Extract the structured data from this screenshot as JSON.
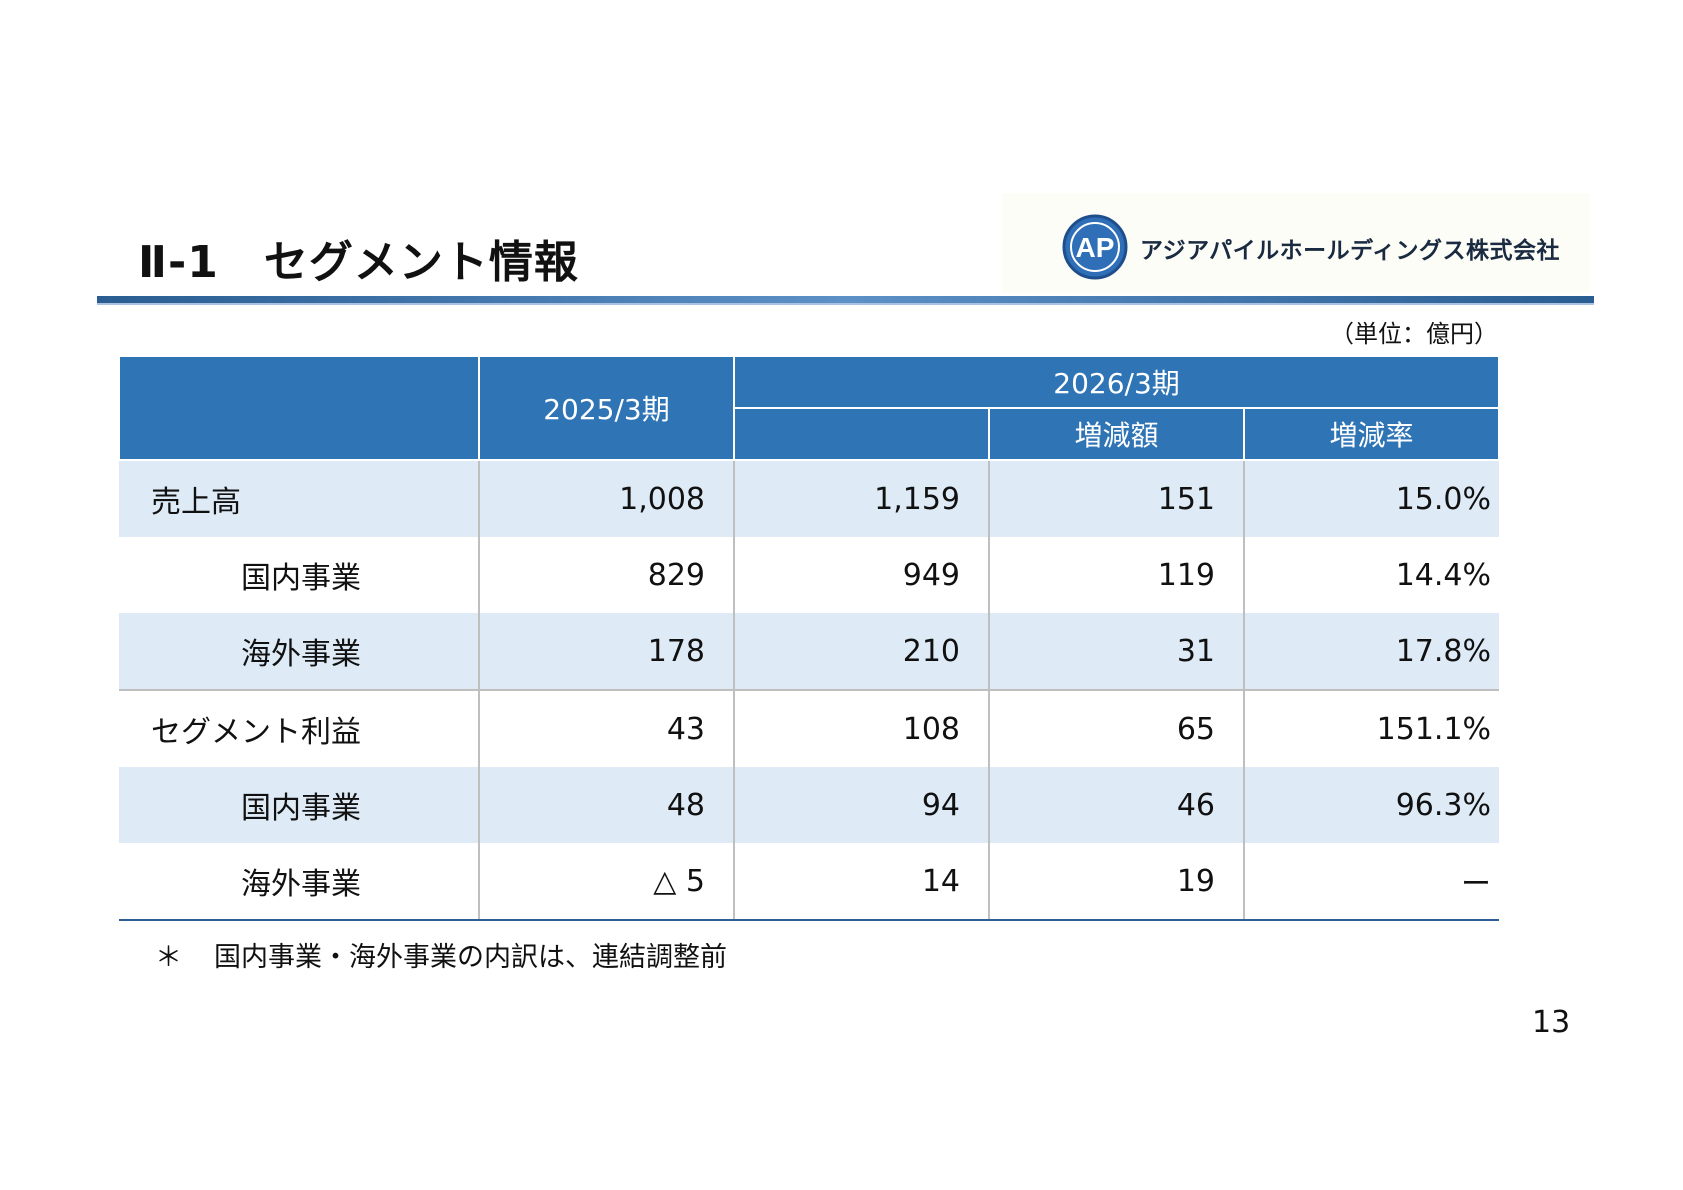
{
  "title": "Ⅱ-1　セグメント情報",
  "logo": {
    "mark_text": "AP",
    "company": "アジアパイルホールディングス株式会社",
    "colors": {
      "ring": "#1f4e8c",
      "fill": "#2e6fb8"
    }
  },
  "unit": "（単位：億円）",
  "table": {
    "header": {
      "col1": "2025/3期",
      "col2": "2026/3期",
      "sub_change": "増減額",
      "sub_rate": "増減率"
    },
    "rows": [
      {
        "label": "売上高",
        "fy2025": "1,008",
        "fy2026": "1,159",
        "change": "151",
        "rate": "15.0%"
      },
      {
        "label": "国内事業",
        "fy2025": "829",
        "fy2026": "949",
        "change": "119",
        "rate": "14.4%"
      },
      {
        "label": "海外事業",
        "fy2025": "178",
        "fy2026": "210",
        "change": "31",
        "rate": "17.8%"
      },
      {
        "label": "セグメント利益",
        "fy2025": "43",
        "fy2026": "108",
        "change": "65",
        "rate": "151.1%"
      },
      {
        "label": "国内事業",
        "fy2025": "48",
        "fy2026": "94",
        "change": "46",
        "rate": "96.3%"
      },
      {
        "label": "海外事業",
        "fy2025": "△ 5",
        "fy2026": "14",
        "change": "19",
        "rate": "ー"
      }
    ]
  },
  "footnote": {
    "mark": "＊",
    "text": "国内事業・海外事業の内訳は、連結調整前"
  },
  "page_number": "13",
  "colors": {
    "header_bg": "#2f74b5",
    "shaded_row": "#deebf7",
    "rule": "#2a5d92"
  }
}
